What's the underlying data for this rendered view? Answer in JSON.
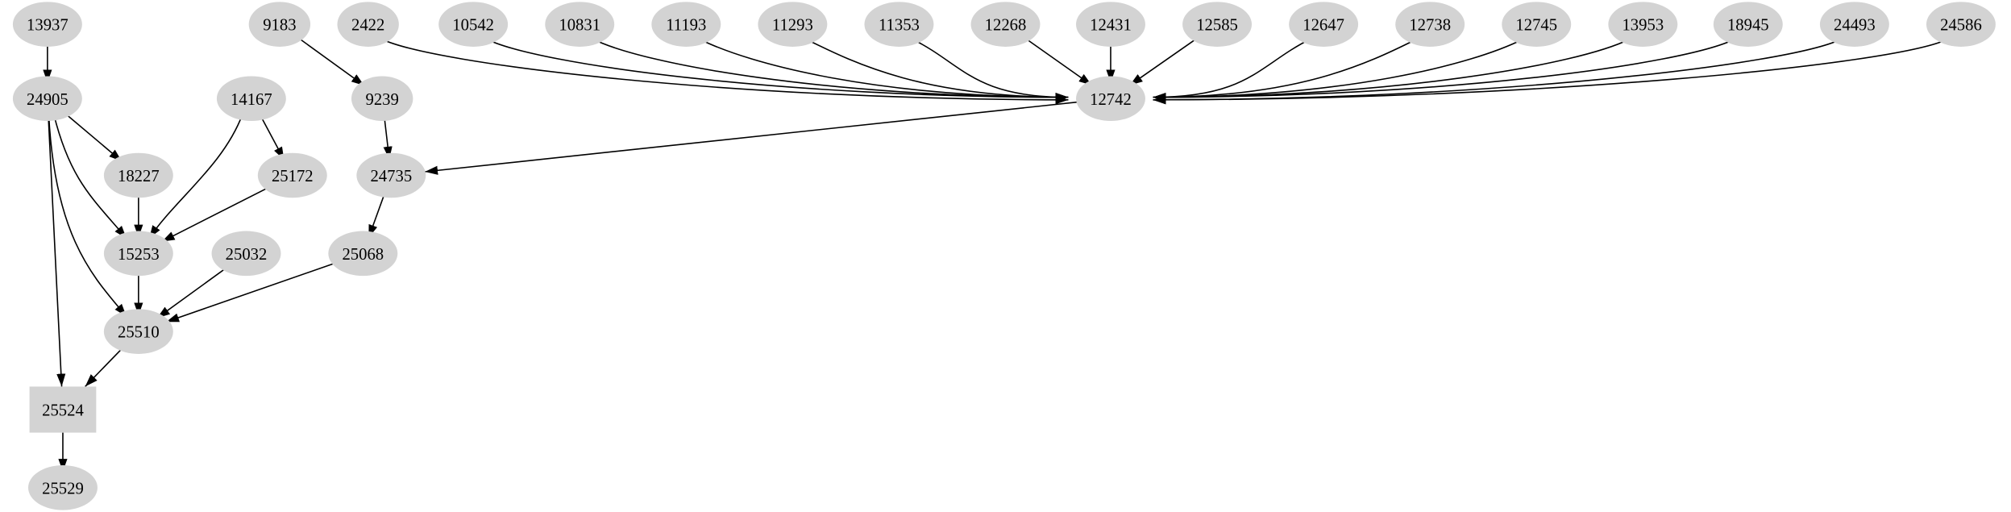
{
  "graph": {
    "node_fill": "#d3d3d3",
    "edge_color": "#000000",
    "nodes": [
      {
        "id": "13937",
        "shape": "ellipse"
      },
      {
        "id": "9183",
        "shape": "ellipse"
      },
      {
        "id": "2422",
        "shape": "ellipse"
      },
      {
        "id": "10542",
        "shape": "ellipse"
      },
      {
        "id": "10831",
        "shape": "ellipse"
      },
      {
        "id": "11193",
        "shape": "ellipse"
      },
      {
        "id": "11293",
        "shape": "ellipse"
      },
      {
        "id": "11353",
        "shape": "ellipse"
      },
      {
        "id": "12268",
        "shape": "ellipse"
      },
      {
        "id": "12431",
        "shape": "ellipse"
      },
      {
        "id": "12585",
        "shape": "ellipse"
      },
      {
        "id": "12647",
        "shape": "ellipse"
      },
      {
        "id": "12738",
        "shape": "ellipse"
      },
      {
        "id": "12745",
        "shape": "ellipse"
      },
      {
        "id": "13953",
        "shape": "ellipse"
      },
      {
        "id": "18945",
        "shape": "ellipse"
      },
      {
        "id": "24493",
        "shape": "ellipse"
      },
      {
        "id": "24586",
        "shape": "ellipse"
      },
      {
        "id": "24905",
        "shape": "ellipse"
      },
      {
        "id": "14167",
        "shape": "ellipse"
      },
      {
        "id": "9239",
        "shape": "ellipse"
      },
      {
        "id": "12742",
        "shape": "ellipse"
      },
      {
        "id": "18227",
        "shape": "ellipse"
      },
      {
        "id": "25172",
        "shape": "ellipse"
      },
      {
        "id": "24735",
        "shape": "ellipse"
      },
      {
        "id": "15253",
        "shape": "ellipse"
      },
      {
        "id": "25032",
        "shape": "ellipse"
      },
      {
        "id": "25068",
        "shape": "ellipse"
      },
      {
        "id": "25510",
        "shape": "ellipse"
      },
      {
        "id": "25524",
        "shape": "box"
      },
      {
        "id": "25529",
        "shape": "ellipse"
      }
    ],
    "edges": [
      [
        "13937",
        "24905"
      ],
      [
        "9183",
        "9239"
      ],
      [
        "2422",
        "12742"
      ],
      [
        "10542",
        "12742"
      ],
      [
        "10831",
        "12742"
      ],
      [
        "11193",
        "12742"
      ],
      [
        "11293",
        "12742"
      ],
      [
        "11353",
        "12742"
      ],
      [
        "12268",
        "12742"
      ],
      [
        "12431",
        "12742"
      ],
      [
        "12585",
        "12742"
      ],
      [
        "12647",
        "12742"
      ],
      [
        "12738",
        "12742"
      ],
      [
        "12745",
        "12742"
      ],
      [
        "13953",
        "12742"
      ],
      [
        "18945",
        "12742"
      ],
      [
        "24493",
        "12742"
      ],
      [
        "24586",
        "12742"
      ],
      [
        "24905",
        "18227"
      ],
      [
        "24905",
        "15253"
      ],
      [
        "24905",
        "25510"
      ],
      [
        "24905",
        "25524"
      ],
      [
        "14167",
        "15253"
      ],
      [
        "14167",
        "25172"
      ],
      [
        "9239",
        "24735"
      ],
      [
        "12742",
        "24735"
      ],
      [
        "18227",
        "15253"
      ],
      [
        "25172",
        "15253"
      ],
      [
        "24735",
        "25068"
      ],
      [
        "15253",
        "25510"
      ],
      [
        "25032",
        "25510"
      ],
      [
        "25068",
        "25510"
      ],
      [
        "25510",
        "25524"
      ],
      [
        "25524",
        "25529"
      ]
    ]
  }
}
